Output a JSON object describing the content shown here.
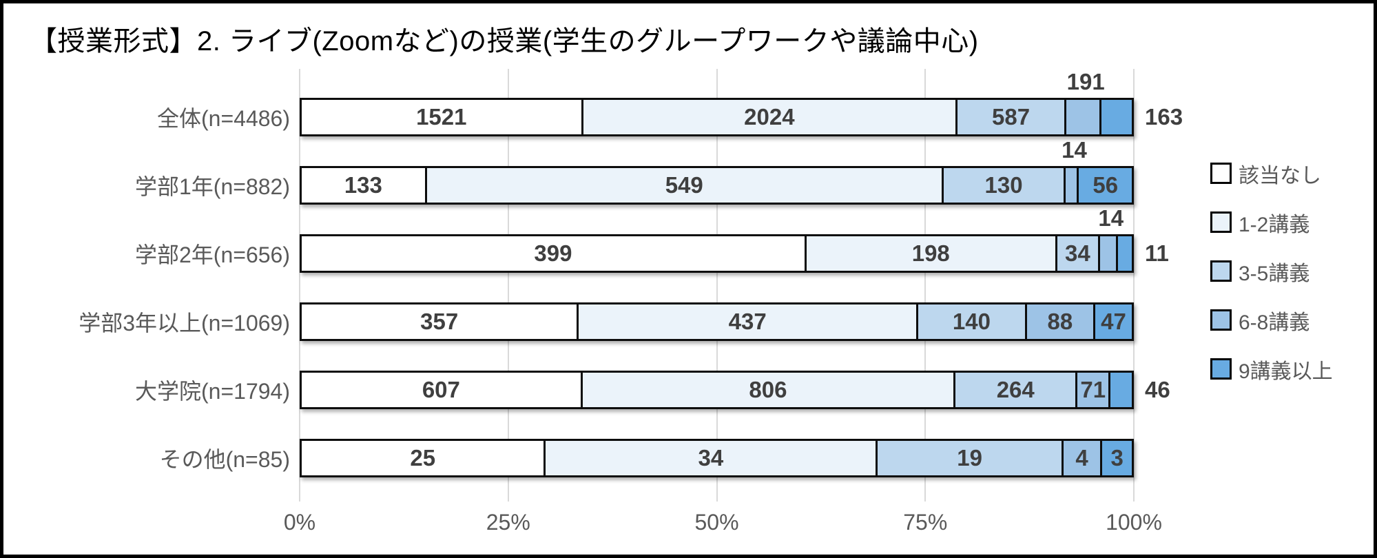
{
  "chart_data": {
    "type": "bar",
    "subtype": "stacked-100-percent",
    "orientation": "horizontal",
    "title": "【授業形式】2. ライブ(Zoomなど)の授業(学生のグループワークや議論中心)",
    "legend": [
      "該当なし",
      "1-2講義",
      "3-5講義",
      "6-8講義",
      "9講義以上"
    ],
    "legend_position": "right",
    "series_colors": [
      "#FFFFFF",
      "#EBF3FA",
      "#BDD7EE",
      "#9DC3E6",
      "#68ABE2"
    ],
    "x_ticks": [
      "0%",
      "25%",
      "50%",
      "75%",
      "100%"
    ],
    "xlim": [
      0,
      100
    ],
    "grid": true,
    "categories": [
      {
        "label": "全体(n=4486)",
        "n": 4486,
        "values": [
          1521,
          2024,
          587,
          191,
          163
        ],
        "label_pos": [
          "inside",
          "inside",
          "inside",
          "above",
          "right"
        ]
      },
      {
        "label": "学部1年(n=882)",
        "n": 882,
        "values": [
          133,
          549,
          130,
          14,
          56
        ],
        "label_pos": [
          "inside",
          "inside",
          "inside",
          "above",
          "inside"
        ]
      },
      {
        "label": "学部2年(n=656)",
        "n": 656,
        "values": [
          399,
          198,
          34,
          14,
          11
        ],
        "label_pos": [
          "inside",
          "inside",
          "inside",
          "above",
          "right"
        ]
      },
      {
        "label": "学部3年以上(n=1069)",
        "n": 1069,
        "values": [
          357,
          437,
          140,
          88,
          47
        ],
        "label_pos": [
          "inside",
          "inside",
          "inside",
          "inside",
          "inside"
        ]
      },
      {
        "label": "大学院(n=1794)",
        "n": 1794,
        "values": [
          607,
          806,
          264,
          71,
          46
        ],
        "label_pos": [
          "inside",
          "inside",
          "inside",
          "inside",
          "right"
        ]
      },
      {
        "label": "その他(n=85)",
        "n": 85,
        "values": [
          25,
          34,
          19,
          4,
          3
        ],
        "label_pos": [
          "inside",
          "inside",
          "inside",
          "inside",
          "inside"
        ]
      }
    ]
  },
  "colors": {
    "title_text": "#000000",
    "axis_text": "#595959",
    "value_text": "#3F3F3F",
    "gridline": "#D9D9D9",
    "bar_border": "#0D0D0D",
    "frame_border": "#000000"
  }
}
